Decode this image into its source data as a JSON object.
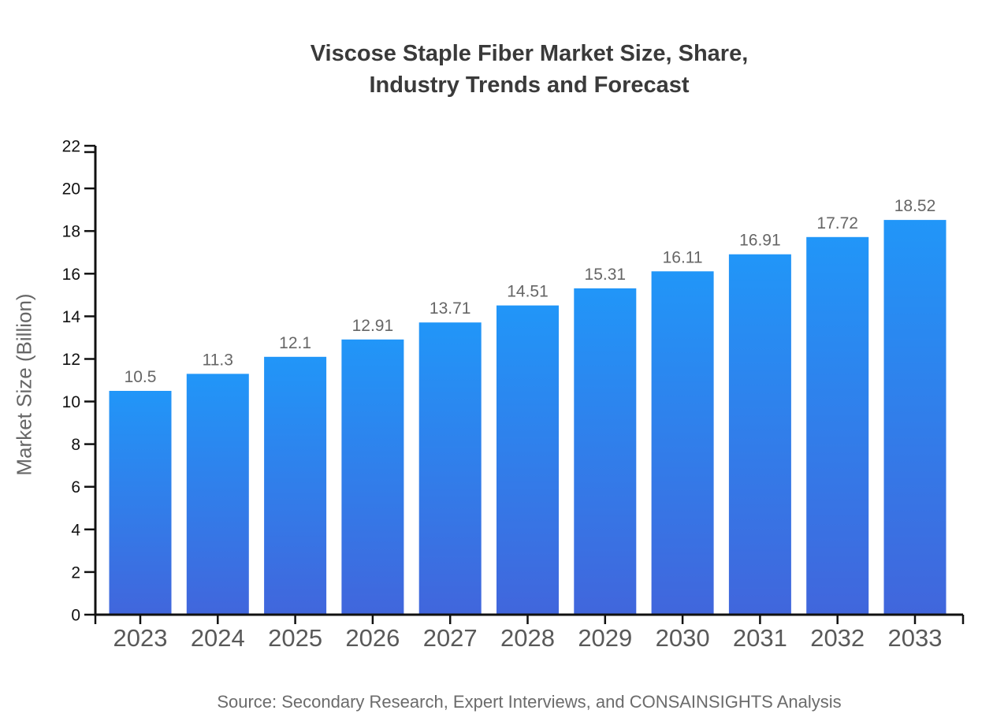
{
  "header": {
    "title": "Viscose Staple Fiber Market Size, Share, Industry Trends and Forecast",
    "title_lines": [
      "Viscose Staple Fiber Market Size, Share,",
      "Industry Trends and Forecast"
    ]
  },
  "chart_data": {
    "type": "bar",
    "title": "Viscose Staple Fiber Market Size, Share, Industry Trends and Forecast",
    "categories": [
      "2023",
      "2024",
      "2025",
      "2026",
      "2027",
      "2028",
      "2029",
      "2030",
      "2031",
      "2032",
      "2033"
    ],
    "values": [
      10.5,
      11.3,
      12.1,
      12.91,
      13.71,
      14.51,
      15.31,
      16.11,
      16.91,
      17.72,
      18.52
    ],
    "value_labels": [
      "10.5",
      "11.3",
      "12.1",
      "12.91",
      "13.71",
      "14.51",
      "15.31",
      "16.11",
      "16.91",
      "17.72",
      "18.52"
    ],
    "ylabel": "Market Size (Billion)",
    "ylim": [
      0,
      22
    ],
    "yticks": [
      0,
      2,
      4,
      6,
      8,
      10,
      12,
      14,
      16,
      18,
      20,
      22
    ],
    "grid": false,
    "legend": "none",
    "bar_color_top": "#2196F8",
    "bar_color_bottom": "#4166DC"
  },
  "footer": {
    "source_note": "Source: Secondary Research, Expert Interviews, and CONSAINSIGHTS Analysis"
  },
  "colors": {
    "background": "#ffffff",
    "title_text": "#3a3a3a",
    "axis": "#111111",
    "y_tick_label": "#111111",
    "x_tick_label": "#595959",
    "value_label": "#666666",
    "axis_title": "#666666",
    "source_text": "#6b6b6b"
  }
}
